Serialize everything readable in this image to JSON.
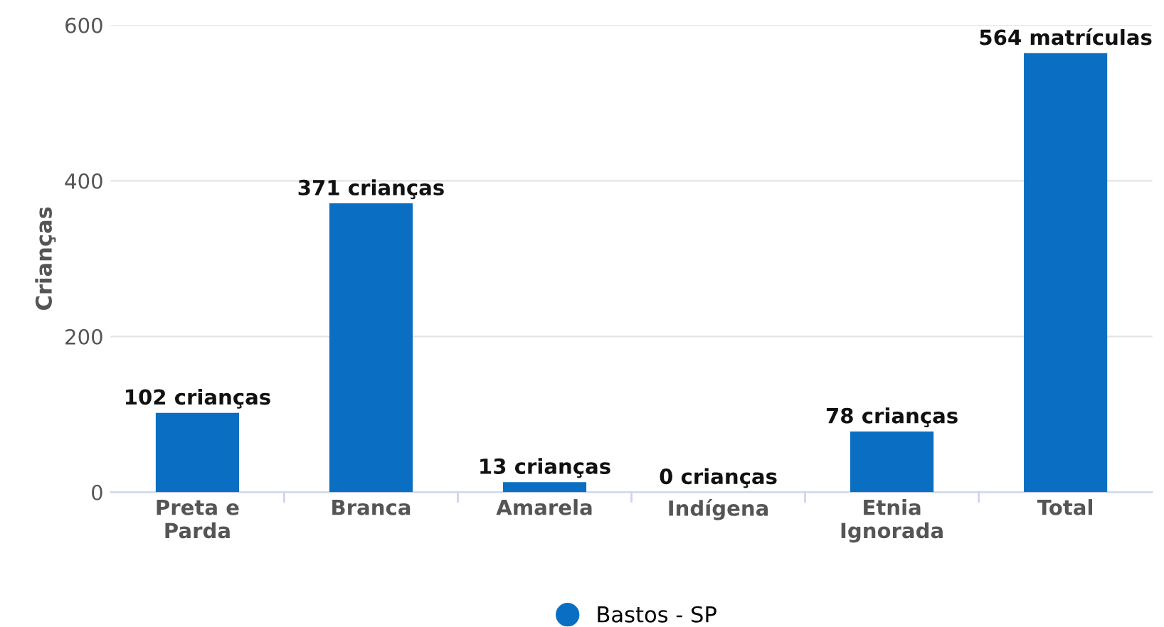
{
  "chart_data": {
    "type": "bar",
    "ylabel": "Crianças",
    "categories": [
      "Preta e\nParda",
      "Branca",
      "Amarela",
      "Indígena",
      "Etnia\nIgnorada",
      "Total"
    ],
    "series": [
      {
        "name": "Bastos - SP",
        "color": "#0a6fc2",
        "values": [
          102,
          371,
          13,
          0,
          78,
          564
        ],
        "value_labels": [
          "102 crianças",
          "371 crianças",
          "13 crianças",
          "0 crianças",
          "78 crianças",
          "564 matrículas"
        ]
      }
    ],
    "ylim": [
      0,
      600
    ],
    "yticks": [
      0,
      200,
      400,
      600
    ],
    "grid": "y",
    "legend": "bottom",
    "marker": "circle"
  }
}
